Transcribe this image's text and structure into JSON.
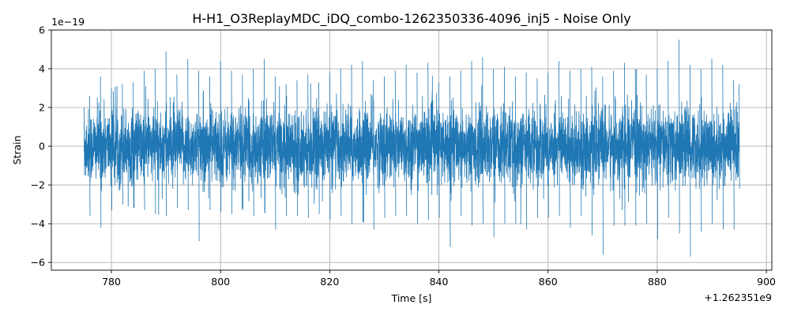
{
  "chart_data": {
    "type": "line",
    "title": "H-H1_O3ReplayMDC_iDQ_combo-1262350336-4096_inj5 - Noise Only",
    "xlabel": "Time [s]",
    "ylabel": "Strain",
    "x_offset_label": "+1.262351e9",
    "y_scale_label": "1e−19",
    "xlim": [
      769,
      901
    ],
    "ylim": [
      -6.4,
      6.0
    ],
    "xticks": [
      780,
      800,
      820,
      840,
      860,
      880,
      900
    ],
    "xtick_labels": [
      "780",
      "800",
      "820",
      "840",
      "860",
      "880",
      "900"
    ],
    "yticks": [
      -6,
      -4,
      -2,
      0,
      2,
      4,
      6
    ],
    "ytick_labels": [
      "−6",
      "−4",
      "−2",
      "0",
      "2",
      "4",
      "6"
    ],
    "grid": true,
    "line_color": "#1f77b4",
    "series": [
      {
        "x_range": [
          775,
          895
        ],
        "envelope_x": [
          775,
          776,
          778,
          780,
          782,
          784,
          786,
          788,
          790,
          792,
          794,
          796,
          798,
          800,
          802,
          804,
          806,
          808,
          810,
          812,
          814,
          816,
          818,
          820,
          822,
          824,
          826,
          828,
          830,
          832,
          834,
          836,
          838,
          840,
          842,
          844,
          846,
          848,
          850,
          852,
          854,
          856,
          858,
          860,
          862,
          864,
          866,
          868,
          870,
          872,
          874,
          876,
          878,
          880,
          882,
          884,
          886,
          888,
          890,
          892,
          894,
          895
        ],
        "envelope_max": [
          2.0,
          2.6,
          3.6,
          3.0,
          3.2,
          3.3,
          3.9,
          4.0,
          4.9,
          3.7,
          4.5,
          3.9,
          3.6,
          4.4,
          3.9,
          3.7,
          4.0,
          4.5,
          3.6,
          3.2,
          3.4,
          3.7,
          3.3,
          3.8,
          4.0,
          4.2,
          4.4,
          3.4,
          3.6,
          3.9,
          4.2,
          3.8,
          4.3,
          3.3,
          3.6,
          3.9,
          4.4,
          4.6,
          4.0,
          4.1,
          3.6,
          3.8,
          3.5,
          3.8,
          4.4,
          3.9,
          4.0,
          4.1,
          3.6,
          3.9,
          4.3,
          4.0,
          3.7,
          4.0,
          4.4,
          5.5,
          4.2,
          4.0,
          4.5,
          4.2,
          3.4,
          3.2
        ],
        "envelope_min": [
          -1.5,
          -3.6,
          -4.2,
          -3.3,
          -3.0,
          -3.2,
          -3.3,
          -3.5,
          -3.6,
          -3.2,
          -3.3,
          -4.9,
          -3.3,
          -3.4,
          -3.5,
          -3.3,
          -3.6,
          -3.4,
          -4.3,
          -3.6,
          -3.6,
          -3.7,
          -3.5,
          -3.8,
          -3.6,
          -4.0,
          -3.9,
          -4.3,
          -3.7,
          -3.6,
          -3.6,
          -4.0,
          -3.8,
          -3.7,
          -5.2,
          -3.6,
          -4.1,
          -4.0,
          -4.7,
          -4.0,
          -4.0,
          -4.3,
          -3.7,
          -3.7,
          -3.6,
          -4.2,
          -3.6,
          -4.6,
          -5.6,
          -4.1,
          -4.1,
          -4.1,
          -4.0,
          -4.8,
          -3.7,
          -4.5,
          -5.7,
          -4.4,
          -4.0,
          -4.3,
          -4.3,
          -2.2
        ]
      }
    ]
  }
}
